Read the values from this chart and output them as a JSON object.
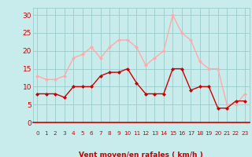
{
  "x": [
    0,
    1,
    2,
    3,
    4,
    5,
    6,
    7,
    8,
    9,
    10,
    11,
    12,
    13,
    14,
    15,
    16,
    17,
    18,
    19,
    20,
    21,
    22,
    23
  ],
  "wind_avg": [
    8,
    8,
    8,
    7,
    10,
    10,
    10,
    13,
    14,
    14,
    15,
    11,
    8,
    8,
    8,
    15,
    15,
    9,
    10,
    10,
    4,
    4,
    6,
    6
  ],
  "wind_gust": [
    13,
    12,
    12,
    13,
    18,
    19,
    21,
    18,
    21,
    23,
    23,
    21,
    16,
    18,
    20,
    30,
    25,
    23,
    17,
    15,
    15,
    5,
    5,
    8
  ],
  "avg_color": "#cc0000",
  "gust_color": "#ffaaaa",
  "bg_color": "#c8ecec",
  "grid_color": "#99cccc",
  "xlabel": "Vent moyen/en rafales ( km/h )",
  "xlabel_color": "#cc0000",
  "tick_color": "#cc0000",
  "ylim": [
    0,
    32
  ],
  "yticks": [
    0,
    5,
    10,
    15,
    20,
    25,
    30
  ],
  "xlim": [
    -0.5,
    23.5
  ]
}
